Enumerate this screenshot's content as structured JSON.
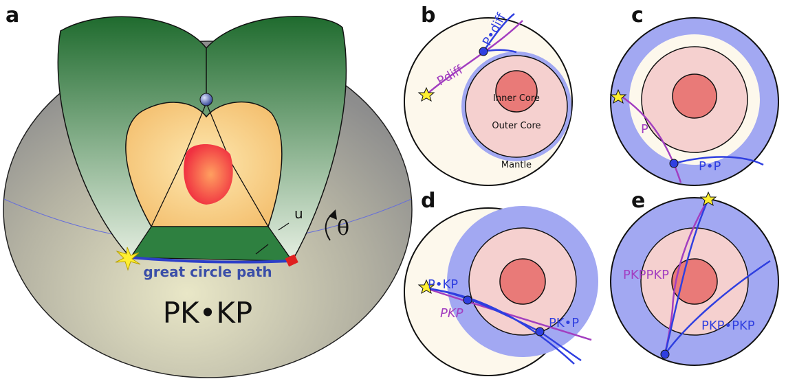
{
  "panels": [
    {
      "label": "a",
      "texts": [
        "u",
        "θ",
        "great circle path",
        "PK•KP"
      ]
    },
    {
      "label": "b",
      "texts": [
        "P•diff",
        "Pdiff",
        "Inner Core",
        "Outer Core",
        "Mantle"
      ]
    },
    {
      "label": "c",
      "texts": [
        "P",
        "P•P"
      ]
    },
    {
      "label": "d",
      "texts": [
        "P•KP",
        "PKP",
        "PK•P"
      ]
    },
    {
      "label": "e",
      "texts": [
        "PKPPKP",
        "PKP•PKP"
      ]
    }
  ]
}
